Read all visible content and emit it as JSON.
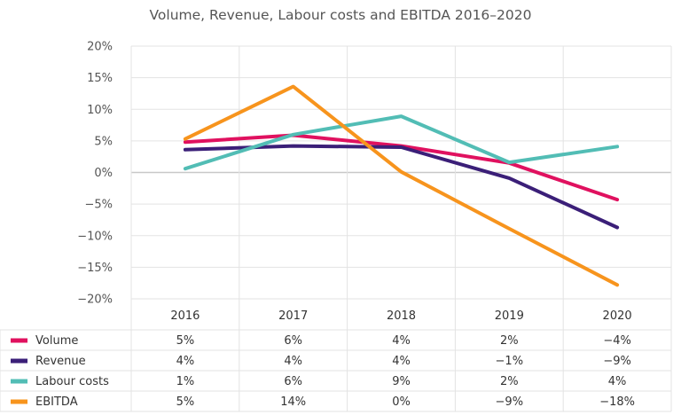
{
  "chart_data": {
    "type": "line",
    "title": "Volume, Revenue, Labour costs and EBITDA 2016–2020",
    "categories": [
      "2016",
      "2017",
      "2018",
      "2019",
      "2020"
    ],
    "ylim": [
      -20,
      20
    ],
    "y_ticks": [
      20,
      15,
      10,
      5,
      0,
      -5,
      -10,
      -15,
      -20
    ],
    "y_tick_labels": [
      "20%",
      "15%",
      "10%",
      "5%",
      "0%",
      "−5%",
      "−10%",
      "−15%",
      "−20%"
    ],
    "grid": true,
    "legend": "data-table-below",
    "series": [
      {
        "name": "Volume",
        "color": "#e0115f",
        "values": [
          4.8,
          5.9,
          4.2,
          1.5,
          -4.3
        ],
        "table": [
          "5%",
          "6%",
          "4%",
          "2%",
          "−4%"
        ]
      },
      {
        "name": "Revenue",
        "color": "#3b1f78",
        "values": [
          3.6,
          4.2,
          4.0,
          -0.9,
          -8.7
        ],
        "table": [
          "4%",
          "4%",
          "4%",
          "−1%",
          "−9%"
        ]
      },
      {
        "name": "Labour costs",
        "color": "#52bdb5",
        "values": [
          0.6,
          6.0,
          8.9,
          1.6,
          4.1
        ],
        "table": [
          "1%",
          "6%",
          "9%",
          "2%",
          "4%"
        ]
      },
      {
        "name": "EBITDA",
        "color": "#f7941d",
        "values": [
          5.3,
          13.6,
          0.1,
          -8.9,
          -17.8
        ],
        "table": [
          "5%",
          "14%",
          "0%",
          "−9%",
          "−18%"
        ]
      }
    ]
  }
}
